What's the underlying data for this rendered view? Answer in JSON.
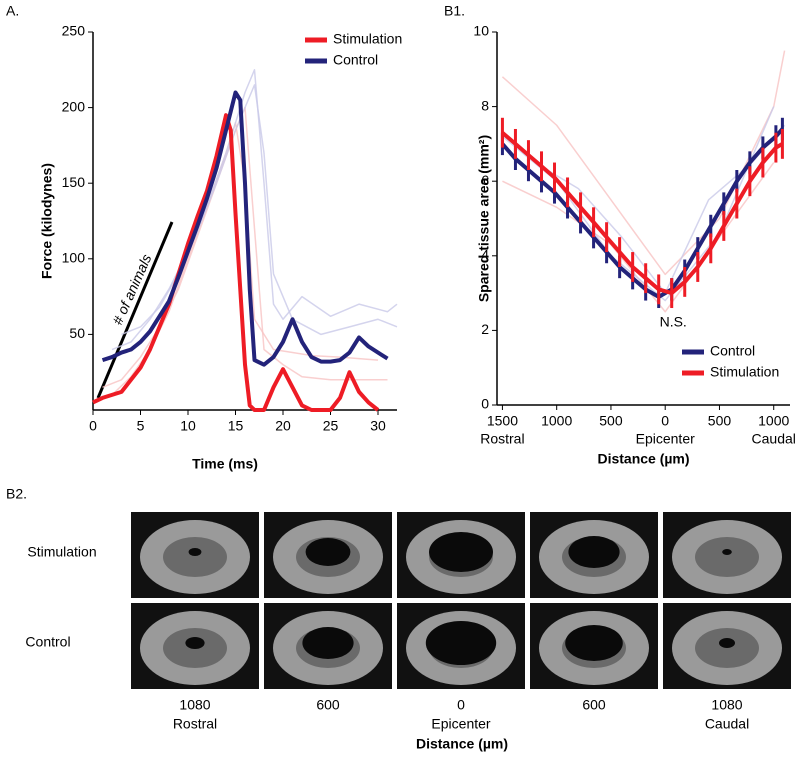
{
  "chart_data": [
    {
      "type": "line",
      "panel": "A.",
      "xlabel": "Time (ms)",
      "ylabel": "Force (kilodynes)",
      "xlim": [
        0,
        32
      ],
      "ylim": [
        0,
        250
      ],
      "xticks": [
        0,
        5,
        10,
        15,
        20,
        25,
        30
      ],
      "yticks": [
        50,
        100,
        150,
        200,
        250
      ],
      "legend": "upper right",
      "annotation": "# of animals",
      "series": [
        {
          "color": "#f7c3c3",
          "x": [
            0,
            2,
            4,
            6,
            8,
            10,
            12,
            14,
            15,
            16,
            17,
            19,
            21,
            23,
            26,
            28,
            30
          ],
          "values": [
            5,
            10,
            22,
            40,
            65,
            100,
            135,
            170,
            190,
            150,
            60,
            40,
            38,
            36,
            35,
            34,
            33
          ]
        },
        {
          "color": "#f7c3c3",
          "x": [
            1,
            3,
            5,
            7,
            9,
            11,
            13,
            15,
            16,
            17,
            18,
            20,
            22,
            25,
            28,
            31
          ],
          "values": [
            15,
            20,
            35,
            55,
            80,
            115,
            150,
            185,
            200,
            120,
            40,
            30,
            22,
            20,
            20,
            20
          ]
        },
        {
          "color": "#c9c9e8",
          "x": [
            2,
            4,
            6,
            8,
            10,
            12,
            14,
            16,
            17,
            18,
            19,
            20,
            22,
            25,
            28,
            31,
            32
          ],
          "values": [
            40,
            45,
            60,
            80,
            105,
            135,
            170,
            210,
            225,
            150,
            70,
            60,
            75,
            62,
            70,
            65,
            70
          ]
        },
        {
          "color": "#c9c9e8",
          "x": [
            3,
            5,
            7,
            9,
            11,
            13,
            15,
            17,
            18,
            19,
            21,
            24,
            27,
            30,
            32
          ],
          "values": [
            50,
            55,
            68,
            90,
            118,
            150,
            185,
            215,
            170,
            90,
            60,
            50,
            55,
            60,
            55
          ]
        },
        {
          "name": "Stimulation",
          "color": "#ee1c25",
          "x": [
            0,
            1,
            2,
            3,
            4,
            5,
            6,
            7,
            8,
            9,
            10,
            11,
            12,
            13,
            14,
            14.5,
            15,
            15.5,
            16,
            16.5,
            17,
            18,
            19,
            20,
            21,
            22,
            23,
            24,
            25,
            26,
            27,
            28,
            29,
            30
          ],
          "values": [
            5,
            8,
            10,
            12,
            20,
            28,
            40,
            55,
            70,
            90,
            110,
            128,
            145,
            168,
            195,
            185,
            130,
            80,
            30,
            3,
            0,
            0,
            15,
            27,
            15,
            3,
            0,
            0,
            0,
            8,
            25,
            12,
            5,
            0
          ]
        },
        {
          "name": "Control",
          "color": "#23237a",
          "x": [
            1,
            2,
            3,
            4,
            5,
            6,
            7,
            8,
            9,
            10,
            11,
            12,
            13,
            14,
            15,
            15.5,
            16,
            16.5,
            17,
            18,
            19,
            20,
            21,
            22,
            23,
            24,
            25,
            26,
            27,
            28,
            29,
            30,
            31
          ],
          "values": [
            33,
            35,
            38,
            40,
            45,
            52,
            62,
            72,
            88,
            105,
            122,
            140,
            160,
            185,
            210,
            205,
            150,
            80,
            33,
            30,
            35,
            45,
            60,
            45,
            35,
            32,
            32,
            33,
            38,
            48,
            42,
            38,
            34
          ]
        }
      ]
    },
    {
      "type": "line",
      "panel": "B1.",
      "xlabel": "Distance (µm)",
      "ylabel": "Spared tissue area (mm²)",
      "xlim": [
        -1550,
        1150
      ],
      "ylim": [
        0,
        10
      ],
      "xticks": [
        {
          "value": -1500,
          "label": "1500"
        },
        {
          "value": -1000,
          "label": "1000"
        },
        {
          "value": -500,
          "label": "500"
        },
        0,
        500,
        {
          "value": 1000,
          "label": "1000"
        }
      ],
      "yticks": [
        0,
        2,
        4,
        6,
        8,
        10
      ],
      "legend": "lower right",
      "region_labels": [
        {
          "value": -1500,
          "label": "Rostral"
        },
        {
          "value": 0,
          "label": "Epicenter"
        },
        {
          "value": 1000,
          "label": "Caudal"
        }
      ],
      "annotation": "N.S.",
      "series": [
        {
          "color": "#f7c3c3",
          "x": [
            -1500,
            -1000,
            -500,
            0,
            500,
            1000,
            1100
          ],
          "values": [
            8.8,
            7.5,
            5.5,
            3.5,
            5,
            8,
            9.5
          ]
        },
        {
          "color": "#f7c3c3",
          "x": [
            -1500,
            -1000,
            -500,
            0,
            500,
            1000
          ],
          "values": [
            6,
            5.3,
            4.3,
            2.5,
            4.5,
            6.5
          ]
        },
        {
          "color": "#c9c9e8",
          "x": [
            -1500,
            -1000,
            -500,
            0,
            500,
            1000
          ],
          "values": [
            7.2,
            6.0,
            4.0,
            2.8,
            4.6,
            8.0
          ]
        },
        {
          "color": "#c9c9e8",
          "x": [
            -1200,
            -800,
            -400,
            0,
            400,
            800,
            1100
          ],
          "values": [
            6.5,
            5.8,
            4.5,
            3.0,
            5.5,
            6.5,
            7.5
          ]
        },
        {
          "name": "Control",
          "color": "#23237a",
          "x": [
            -1500,
            -1380,
            -1260,
            -1140,
            -1020,
            -900,
            -780,
            -660,
            -540,
            -420,
            -300,
            -180,
            -60,
            60,
            180,
            300,
            420,
            540,
            660,
            780,
            900,
            1020,
            1080
          ],
          "values": [
            7.0,
            6.6,
            6.3,
            6.0,
            5.7,
            5.3,
            4.9,
            4.5,
            4.1,
            3.7,
            3.4,
            3.1,
            2.9,
            3.1,
            3.6,
            4.2,
            4.8,
            5.4,
            6.0,
            6.5,
            6.9,
            7.2,
            7.4
          ],
          "errors": [
            0.3,
            0.3,
            0.3,
            0.3,
            0.3,
            0.3,
            0.3,
            0.3,
            0.3,
            0.3,
            0.3,
            0.3,
            0.3,
            0.3,
            0.3,
            0.3,
            0.3,
            0.3,
            0.3,
            0.3,
            0.3,
            0.3,
            0.3
          ]
        },
        {
          "name": "Stimulation",
          "color": "#ee1c25",
          "x": [
            -1500,
            -1380,
            -1260,
            -1140,
            -1020,
            -900,
            -780,
            -660,
            -540,
            -420,
            -300,
            -180,
            -60,
            60,
            180,
            300,
            420,
            540,
            660,
            780,
            900,
            1020,
            1080
          ],
          "values": [
            7.3,
            7.0,
            6.7,
            6.4,
            6.1,
            5.7,
            5.3,
            4.9,
            4.5,
            4.1,
            3.7,
            3.4,
            3.1,
            3.0,
            3.3,
            3.7,
            4.2,
            4.8,
            5.4,
            6.0,
            6.5,
            6.9,
            7.0
          ],
          "errors": [
            0.4,
            0.4,
            0.4,
            0.4,
            0.4,
            0.4,
            0.4,
            0.4,
            0.4,
            0.4,
            0.4,
            0.4,
            0.4,
            0.4,
            0.4,
            0.4,
            0.4,
            0.4,
            0.4,
            0.4,
            0.4,
            0.4,
            0.4
          ]
        }
      ]
    }
  ],
  "figure_b2": {
    "panel": "B2.",
    "rows": [
      "Stimulation",
      "Control"
    ],
    "columns": [
      {
        "distance": "1080",
        "region": "Rostral"
      },
      {
        "distance": "600"
      },
      {
        "distance": "0",
        "region": "Epicenter"
      },
      {
        "distance": "600"
      },
      {
        "distance": "1080",
        "region": "Caudal"
      }
    ],
    "xlabel": "Distance (µm)"
  }
}
